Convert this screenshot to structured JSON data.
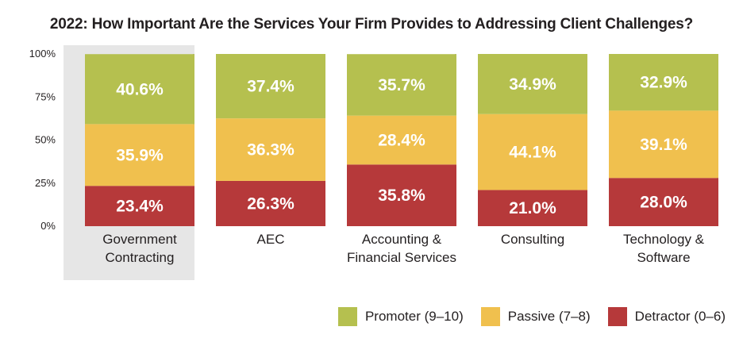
{
  "chart_data": {
    "type": "bar",
    "stacked": true,
    "title": "2022: How Important Are the Services Your Firm Provides to Addressing Client Challenges?",
    "categories": [
      [
        "Government",
        "Contracting"
      ],
      [
        "AEC"
      ],
      [
        "Accounting &",
        "Financial Services"
      ],
      [
        "Consulting"
      ],
      [
        "Technology &",
        "Software"
      ]
    ],
    "highlighted_category": 0,
    "ylim": [
      0,
      100
    ],
    "yticks": [
      "0%",
      "25%",
      "50%",
      "75%",
      "100%"
    ],
    "series": [
      {
        "name": "Detractor (0–6)",
        "color": "#b6393a",
        "values": [
          23.4,
          26.3,
          35.8,
          21.0,
          28.0
        ],
        "labels": [
          "23.4%",
          "26.3%",
          "35.8%",
          "21.0%",
          "28.0%"
        ]
      },
      {
        "name": "Passive (7–8)",
        "color": "#f0c04e",
        "values": [
          35.9,
          36.3,
          28.4,
          44.1,
          39.1
        ],
        "labels": [
          "35.9%",
          "36.3%",
          "28.4%",
          "44.1%",
          "39.1%"
        ]
      },
      {
        "name": "Promoter (9–10)",
        "color": "#b5c04f",
        "values": [
          40.6,
          37.4,
          35.7,
          34.9,
          32.9
        ],
        "labels": [
          "40.6%",
          "37.4%",
          "35.7%",
          "34.9%",
          "32.9%"
        ]
      }
    ],
    "legend": {
      "position": "bottom-right",
      "order": [
        2,
        1,
        0
      ]
    },
    "highlight_color": "#e6e6e6"
  }
}
